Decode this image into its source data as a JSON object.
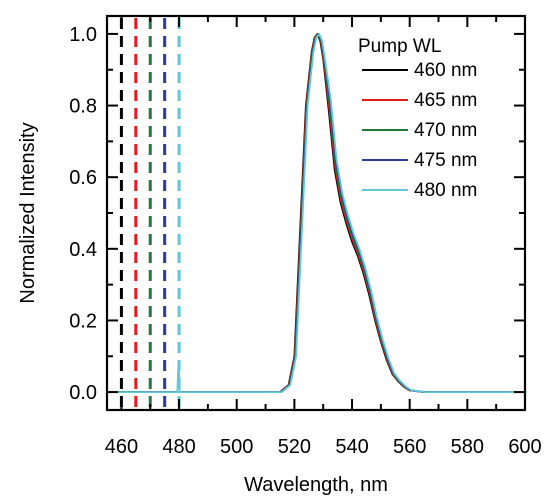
{
  "chart_data": {
    "type": "line",
    "xlabel": "Wavelength, nm",
    "ylabel": "Normalized Intensity",
    "xlim": [
      455,
      600
    ],
    "ylim": [
      -0.05,
      1.05
    ],
    "x_ticks": [
      460,
      480,
      500,
      520,
      540,
      560,
      580,
      600
    ],
    "x_tick_labels": [
      "460",
      "480",
      "500",
      "520",
      "540",
      "560",
      "580",
      "600"
    ],
    "y_ticks": [
      0.0,
      0.2,
      0.4,
      0.6,
      0.8,
      1.0
    ],
    "y_tick_labels": [
      "0.0",
      "0.2",
      "0.4",
      "0.6",
      "0.8",
      "1.0"
    ],
    "legend": {
      "title": "Pump WL",
      "position": "top-right"
    },
    "series": [
      {
        "name": "460 nm",
        "color": "#000000",
        "pump_wavelength": 460
      },
      {
        "name": "465 nm",
        "color": "#e41a1c",
        "pump_wavelength": 465
      },
      {
        "name": "470 nm",
        "color": "#1f7a3a",
        "pump_wavelength": 470
      },
      {
        "name": "475 nm",
        "color": "#2a3c9a",
        "pump_wavelength": 475
      },
      {
        "name": "480 nm",
        "color": "#5ec8d8",
        "pump_wavelength": 480
      }
    ],
    "emission_x": [
      455,
      515,
      518,
      520,
      522,
      524,
      526,
      527,
      528,
      529,
      530,
      532,
      534,
      536,
      538,
      540,
      542,
      544,
      546,
      548,
      550,
      552,
      554,
      556,
      558,
      560,
      565,
      600
    ],
    "emission_y": [
      0.0,
      0.0,
      0.02,
      0.1,
      0.45,
      0.8,
      0.95,
      0.99,
      1.0,
      0.98,
      0.93,
      0.78,
      0.62,
      0.53,
      0.47,
      0.42,
      0.38,
      0.33,
      0.27,
      0.2,
      0.14,
      0.09,
      0.05,
      0.03,
      0.015,
      0.005,
      0.0,
      0.0
    ]
  }
}
